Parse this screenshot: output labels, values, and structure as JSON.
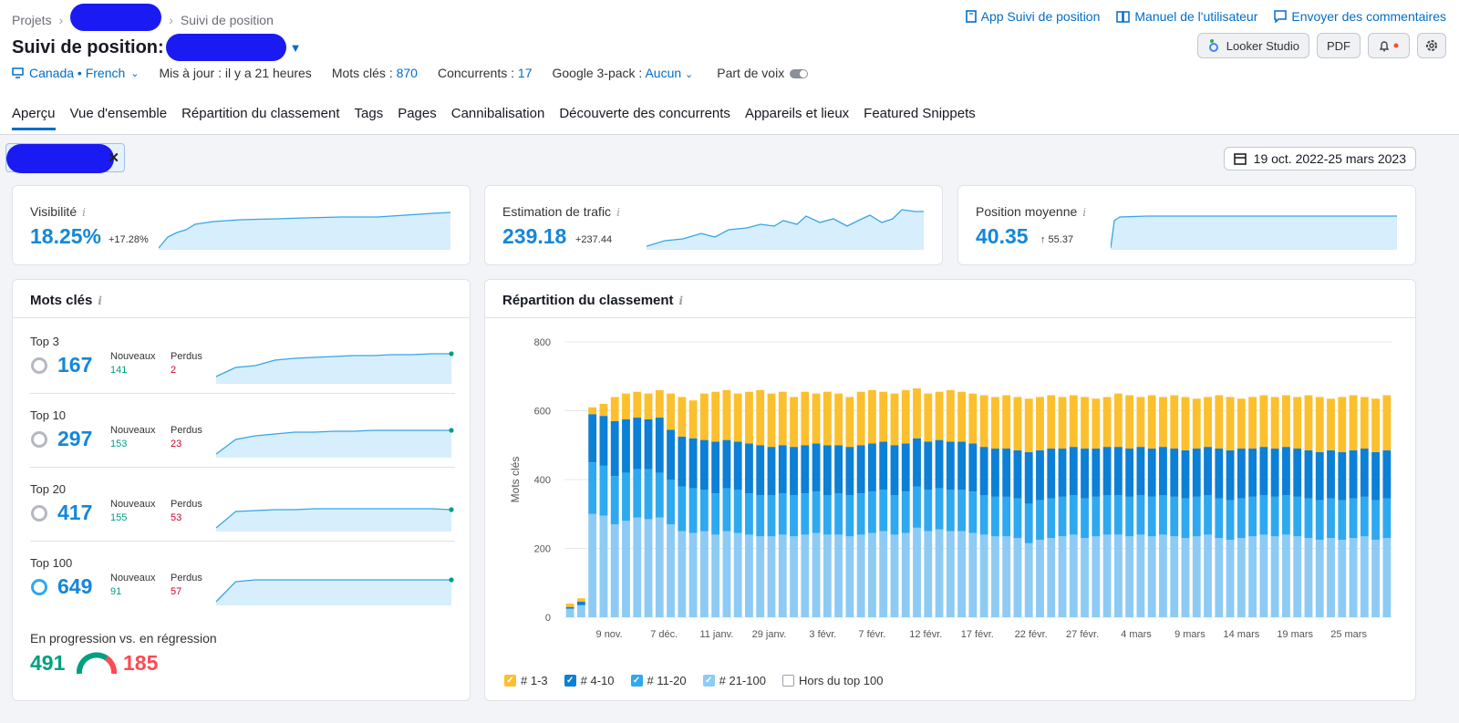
{
  "breadcrumb": {
    "root": "Projets",
    "current": "Suivi de position"
  },
  "top_links": {
    "app": "App Suivi de position",
    "manual": "Manuel de l'utilisateur",
    "feedback": "Envoyer des commentaires"
  },
  "page_title": "Suivi de position:",
  "buttons": {
    "looker": "Looker Studio",
    "pdf": "PDF"
  },
  "meta": {
    "location": "Canada • French",
    "updated": "Mis à jour : il y a 21 heures",
    "keywords_label": "Mots clés :",
    "keywords_value": "870",
    "competitors_label": "Concurrents :",
    "competitors_value": "17",
    "pack_label": "Google 3-pack :",
    "pack_value": "Aucun",
    "share_label": "Part de voix"
  },
  "tabs": [
    "Aperçu",
    "Vue d'ensemble",
    "Répartition du classement",
    "Tags",
    "Pages",
    "Cannibalisation",
    "Découverte des concurrents",
    "Appareils et lieux",
    "Featured Snippets"
  ],
  "date_range": "19 oct. 2022-25 mars 2023",
  "kpis": [
    {
      "label": "Visibilité",
      "value": "18.25%",
      "delta": "+17.28%"
    },
    {
      "label": "Estimation de trafic",
      "value": "239.18",
      "delta": "+237.44"
    },
    {
      "label": "Position moyenne",
      "value": "40.35",
      "delta": "↑ 55.37"
    }
  ],
  "keywords_card": {
    "title": "Mots clés",
    "new_label": "Nouveaux",
    "lost_label": "Perdus",
    "rows": [
      {
        "label": "Top 3",
        "value": "167",
        "new": "141",
        "lost": "2"
      },
      {
        "label": "Top 10",
        "value": "297",
        "new": "153",
        "lost": "23"
      },
      {
        "label": "Top 20",
        "value": "417",
        "new": "155",
        "lost": "53"
      },
      {
        "label": "Top 100",
        "value": "649",
        "new": "91",
        "lost": "57"
      }
    ],
    "progress_label": "En progression vs. en régression",
    "progress_up": "491",
    "progress_down": "185"
  },
  "ranking_card": {
    "title": "Répartition du classement"
  },
  "chart_data": {
    "type": "bar",
    "stacked": true,
    "ylabel": "Mots clés",
    "ylim": [
      0,
      800
    ],
    "yticks": [
      0,
      200,
      400,
      600,
      800
    ],
    "xtick_labels": [
      "9 nov.",
      "7 déc.",
      "11 janv.",
      "29 janv.",
      "3 févr.",
      "7 févr.",
      "12 févr.",
      "17 févr.",
      "22 févr.",
      "27 févr.",
      "4 mars",
      "9 mars",
      "14 mars",
      "19 mars",
      "25 mars"
    ],
    "legend": [
      "# 1-3",
      "# 4-10",
      "# 11-20",
      "# 21-100",
      "Hors du top 100"
    ],
    "colors": {
      "s13": "#fcc02e",
      "s410": "#0c7fd6",
      "s1120": "#2ea9f0",
      "s21100": "#8dcbf5"
    },
    "cumulative_levels": {
      "21-100": [
        25,
        35,
        300,
        295,
        270,
        280,
        290,
        285,
        290,
        270,
        250,
        245,
        250,
        240,
        250,
        245,
        240,
        235,
        235,
        240,
        235,
        240,
        245,
        240,
        240,
        235,
        240,
        245,
        250,
        240,
        245,
        260,
        250,
        255,
        250,
        250,
        245,
        240,
        235,
        235,
        230,
        215,
        225,
        230,
        235,
        240,
        230,
        235,
        240,
        240,
        235,
        240,
        235,
        240,
        235,
        230,
        235,
        240,
        230,
        225,
        230,
        235,
        240,
        235,
        240,
        235,
        230,
        225,
        230,
        225,
        230,
        235,
        225,
        230
      ],
      "11-20": [
        25,
        35,
        450,
        440,
        410,
        420,
        430,
        430,
        420,
        400,
        380,
        375,
        370,
        360,
        375,
        370,
        360,
        355,
        355,
        360,
        355,
        360,
        365,
        355,
        360,
        355,
        360,
        365,
        370,
        355,
        365,
        380,
        370,
        375,
        370,
        370,
        365,
        355,
        350,
        350,
        345,
        330,
        340,
        345,
        350,
        355,
        345,
        350,
        355,
        355,
        350,
        355,
        350,
        355,
        350,
        345,
        350,
        355,
        345,
        340,
        345,
        350,
        355,
        350,
        355,
        350,
        345,
        340,
        345,
        340,
        345,
        350,
        340,
        345
      ],
      "4-10": [
        30,
        45,
        590,
        585,
        570,
        575,
        580,
        575,
        580,
        545,
        525,
        520,
        515,
        510,
        515,
        510,
        505,
        500,
        495,
        500,
        495,
        500,
        505,
        500,
        500,
        495,
        500,
        505,
        510,
        500,
        505,
        520,
        510,
        515,
        510,
        510,
        505,
        495,
        490,
        490,
        485,
        480,
        485,
        490,
        490,
        495,
        490,
        490,
        495,
        495,
        490,
        495,
        490,
        495,
        490,
        485,
        490,
        495,
        490,
        485,
        490,
        490,
        495,
        490,
        495,
        490,
        485,
        480,
        485,
        480,
        485,
        490,
        480,
        485
      ],
      "1-3": [
        40,
        55,
        610,
        620,
        640,
        650,
        655,
        650,
        660,
        650,
        640,
        630,
        650,
        655,
        660,
        650,
        655,
        660,
        650,
        655,
        640,
        655,
        650,
        655,
        650,
        640,
        655,
        660,
        655,
        650,
        660,
        665,
        650,
        655,
        660,
        655,
        650,
        645,
        640,
        645,
        640,
        635,
        640,
        645,
        640,
        645,
        640,
        635,
        640,
        650,
        645,
        640,
        645,
        640,
        645,
        640,
        635,
        640,
        645,
        640,
        635,
        640,
        645,
        640,
        645,
        640,
        645,
        640,
        635,
        640,
        645,
        640,
        635,
        645
      ]
    }
  }
}
